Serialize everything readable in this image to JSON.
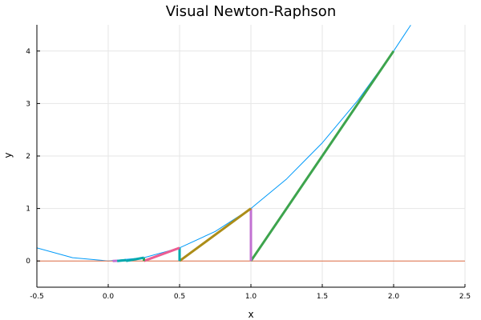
{
  "chart_data": {
    "type": "line",
    "title": "Visual Newton-Raphson",
    "xlabel": "x",
    "ylabel": "y",
    "xlim": [
      -0.5,
      2.5
    ],
    "ylim": [
      -0.5,
      4.5
    ],
    "xticks": [
      -0.5,
      0.0,
      0.5,
      1.0,
      1.5,
      2.0,
      2.5
    ],
    "xtick_labels": [
      "-0.5",
      "0.0",
      "0.5",
      "1.0",
      "1.5",
      "2.0",
      "2.5"
    ],
    "yticks": [
      0,
      1,
      2,
      3,
      4
    ],
    "ytick_labels": [
      "0",
      "1",
      "2",
      "3",
      "4"
    ],
    "grid": true,
    "legend": "none",
    "series": [
      {
        "kind": "curve",
        "color": "#009af9",
        "width": 1,
        "x": [
          -0.5,
          -0.25,
          0.0,
          0.25,
          0.5,
          0.75,
          1.0,
          1.25,
          1.5,
          1.75,
          2.0,
          2.12
        ],
        "y": [
          0.25,
          0.0625,
          0.0,
          0.0625,
          0.25,
          0.5625,
          1.0,
          1.5625,
          2.25,
          3.0625,
          4.0,
          4.4944
        ]
      },
      {
        "kind": "zero-line",
        "color": "#e26f46",
        "width": 1,
        "x": [
          -0.5,
          2.5
        ],
        "y": [
          0,
          0
        ]
      },
      {
        "kind": "tangent",
        "color": "#3da44d",
        "width": 3,
        "x": [
          1.0,
          2.0
        ],
        "y": [
          0.0,
          4.0
        ]
      },
      {
        "kind": "vertical",
        "color": "#c271d2",
        "width": 3,
        "x": [
          1.0,
          1.0
        ],
        "y": [
          0.0,
          1.0
        ]
      },
      {
        "kind": "tangent",
        "color": "#ac8d18",
        "width": 3,
        "x": [
          0.5,
          1.0
        ],
        "y": [
          0.0,
          1.0
        ]
      },
      {
        "kind": "vertical",
        "color": "#00a9ad",
        "width": 3,
        "x": [
          0.5,
          0.5
        ],
        "y": [
          0.0,
          0.25
        ]
      },
      {
        "kind": "tangent",
        "color": "#ed5d92",
        "width": 3,
        "x": [
          0.25,
          0.5
        ],
        "y": [
          0.0,
          0.25
        ]
      },
      {
        "kind": "vertical",
        "color": "#3da44d",
        "width": 3,
        "x": [
          0.25,
          0.25
        ],
        "y": [
          0.0,
          0.0625
        ]
      },
      {
        "kind": "tangent",
        "color": "#00a9ad",
        "width": 3,
        "x": [
          0.125,
          0.25
        ],
        "y": [
          0.0,
          0.0625
        ]
      },
      {
        "kind": "tangent",
        "color": "#00a9ad",
        "width": 3,
        "x": [
          0.0625,
          0.125
        ],
        "y": [
          0.0,
          0.015625
        ]
      },
      {
        "kind": "tangent",
        "color": "#c271d2",
        "width": 3,
        "x": [
          0.03125,
          0.0625
        ],
        "y": [
          0.0,
          0.0039
        ]
      }
    ]
  }
}
